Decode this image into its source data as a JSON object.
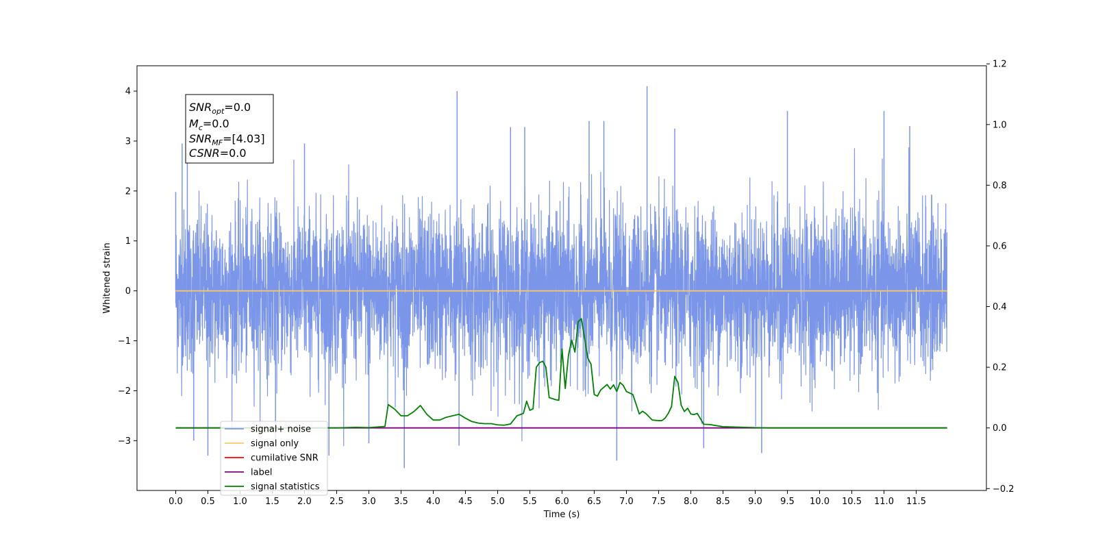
{
  "chart_data": {
    "type": "line",
    "xlabel": "Time (s)",
    "ylabel": "Whitened strain",
    "xlim": [
      -0.5,
      12.5
    ],
    "ylim": [
      -3.95,
      4.5
    ],
    "ylim_right": [
      -0.2,
      1.2
    ],
    "x_ticks": [
      "0.0",
      "0.5",
      "1.0",
      "1.5",
      "2.0",
      "2.5",
      "3.0",
      "3.5",
      "4.0",
      "4.5",
      "5.0",
      "5.5",
      "6.0",
      "6.5",
      "7.0",
      "7.5",
      "8.0",
      "8.5",
      "9.0",
      "9.5",
      "10.0",
      "10.5",
      "11.0",
      "11.5"
    ],
    "y_ticks_left": [
      "4",
      "3",
      "2",
      "1",
      "0",
      "−1",
      "−2",
      "−3"
    ],
    "y_ticks_right": [
      "1.2",
      "1.0",
      "0.8",
      "0.6",
      "0.4",
      "0.2",
      "0.0",
      "−0.2"
    ],
    "annotation": [
      {
        "base": "SNR",
        "sub": "opt",
        "rest": "=0.0"
      },
      {
        "base": "M",
        "sub": "c",
        "rest": "=0.0"
      },
      {
        "base": "SNR",
        "sub": "MF",
        "rest": "=[4.03]"
      },
      {
        "base": "CSNR",
        "sub": "",
        "rest": "=0.0"
      }
    ],
    "legend_position": "lower-left",
    "legend": [
      {
        "name": "signal+ noise",
        "color": "#7b96e8"
      },
      {
        "name": "signal only",
        "color": "#ffc966"
      },
      {
        "name": "cumilative SNR",
        "color": "#ff0000"
      },
      {
        "name": "label",
        "color": "#800080"
      },
      {
        "name": "signal statistics",
        "color": "#008000"
      }
    ],
    "series": [
      {
        "name": "signal+ noise",
        "axis": "left",
        "color": "#7b96e8",
        "kind": "whitened noise, approx std 0.8, x from 0.0 to 11.98 s",
        "spikes": [
          [
            0.0,
            1.98
          ],
          [
            0.1,
            2.95
          ],
          [
            0.18,
            3.33
          ],
          [
            0.28,
            -3.0
          ],
          [
            0.5,
            -3.3
          ],
          [
            1.55,
            -2.95
          ],
          [
            2.0,
            2.95
          ],
          [
            2.38,
            -3.3
          ],
          [
            3.0,
            -3.05
          ],
          [
            3.55,
            -3.55
          ],
          [
            4.37,
            4.0
          ],
          [
            4.4,
            -3.1
          ],
          [
            5.2,
            3.28
          ],
          [
            5.42,
            3.28
          ],
          [
            6.42,
            3.4
          ],
          [
            6.65,
            3.4
          ],
          [
            6.85,
            -3.4
          ],
          [
            7.32,
            4.1
          ],
          [
            7.75,
            3.25
          ],
          [
            8.2,
            -3.15
          ],
          [
            9.1,
            -3.25
          ],
          [
            9.5,
            3.6
          ],
          [
            11.0,
            3.6
          ],
          [
            11.4,
            3.3
          ]
        ]
      },
      {
        "name": "signal only",
        "axis": "left",
        "color": "#ffc966",
        "x": [
          0.0,
          11.98
        ],
        "values": [
          0.0,
          0.0
        ]
      },
      {
        "name": "label",
        "axis": "right",
        "color": "#800080",
        "x": [
          0.0,
          11.98
        ],
        "values": [
          0.0,
          0.0
        ]
      },
      {
        "name": "signal statistics",
        "axis": "right",
        "color": "#008000",
        "x": [
          0.0,
          2.5,
          2.8,
          3.0,
          3.25,
          3.3,
          3.4,
          3.5,
          3.6,
          3.7,
          3.8,
          3.9,
          4.0,
          4.1,
          4.2,
          4.3,
          4.4,
          4.5,
          4.6,
          4.7,
          4.8,
          4.9,
          5.0,
          5.1,
          5.2,
          5.3,
          5.4,
          5.45,
          5.5,
          5.55,
          5.6,
          5.65,
          5.7,
          5.75,
          5.8,
          5.9,
          5.95,
          6.0,
          6.05,
          6.1,
          6.15,
          6.2,
          6.25,
          6.3,
          6.4,
          6.45,
          6.5,
          6.55,
          6.6,
          6.7,
          6.75,
          6.8,
          6.85,
          6.9,
          6.95,
          7.0,
          7.1,
          7.2,
          7.25,
          7.3,
          7.4,
          7.5,
          7.55,
          7.6,
          7.65,
          7.7,
          7.75,
          7.8,
          7.85,
          7.9,
          7.95,
          8.0,
          8.05,
          8.1,
          8.2,
          8.3,
          8.5,
          9.0,
          9.2,
          10.0,
          11.98
        ],
        "values": [
          0.0,
          0.0,
          0.002,
          0.001,
          0.005,
          0.077,
          0.062,
          0.04,
          0.04,
          0.054,
          0.074,
          0.045,
          0.026,
          0.026,
          0.035,
          0.04,
          0.045,
          0.032,
          0.021,
          0.016,
          0.014,
          0.014,
          0.01,
          0.009,
          0.013,
          0.04,
          0.048,
          0.088,
          0.058,
          0.063,
          0.2,
          0.215,
          0.22,
          0.2,
          0.1,
          0.093,
          0.091,
          0.26,
          0.13,
          0.24,
          0.29,
          0.25,
          0.35,
          0.36,
          0.23,
          0.21,
          0.11,
          0.105,
          0.125,
          0.143,
          0.128,
          0.142,
          0.12,
          0.15,
          0.14,
          0.12,
          0.11,
          0.046,
          0.055,
          0.048,
          0.026,
          0.024,
          0.024,
          0.032,
          0.048,
          0.07,
          0.17,
          0.15,
          0.075,
          0.054,
          0.065,
          0.046,
          0.044,
          0.048,
          0.012,
          0.011,
          0.004,
          0.001,
          0.0,
          0.0,
          0.0
        ]
      }
    ]
  }
}
